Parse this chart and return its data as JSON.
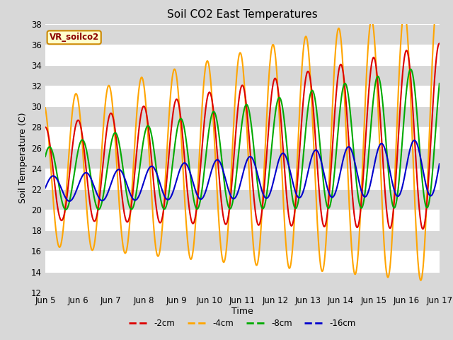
{
  "title": "Soil CO2 East Temperatures",
  "xlabel": "Time",
  "ylabel": "Soil Temperature (C)",
  "ylim": [
    12,
    38
  ],
  "ytick_values": [
    12,
    14,
    16,
    18,
    20,
    22,
    24,
    26,
    28,
    30,
    32,
    34,
    36,
    38
  ],
  "xtick_labels": [
    "Jun 5",
    "Jun 6",
    "Jun 7",
    "Jun 8",
    "Jun 9",
    "Jun 10",
    "Jun 11",
    "Jun 12",
    "Jun 13",
    "Jun 14",
    "Jun 15",
    "Jun 16",
    "Jun 17"
  ],
  "legend_label": "VR_soilco2",
  "series": {
    "-2cm": {
      "color": "#dd0000",
      "lw": 1.5
    },
    "-4cm": {
      "color": "#ffa500",
      "lw": 1.5
    },
    "-8cm": {
      "color": "#00aa00",
      "lw": 1.5
    },
    "-16cm": {
      "color": "#0000cc",
      "lw": 1.5
    }
  },
  "fig_bg": "#d8d8d8",
  "plot_bg": "#e8e8e8",
  "stripe_color": "#d8d8d8",
  "grid_line_color": "#ffffff",
  "title_fontsize": 11,
  "axis_label_fontsize": 9,
  "tick_fontsize": 8.5
}
